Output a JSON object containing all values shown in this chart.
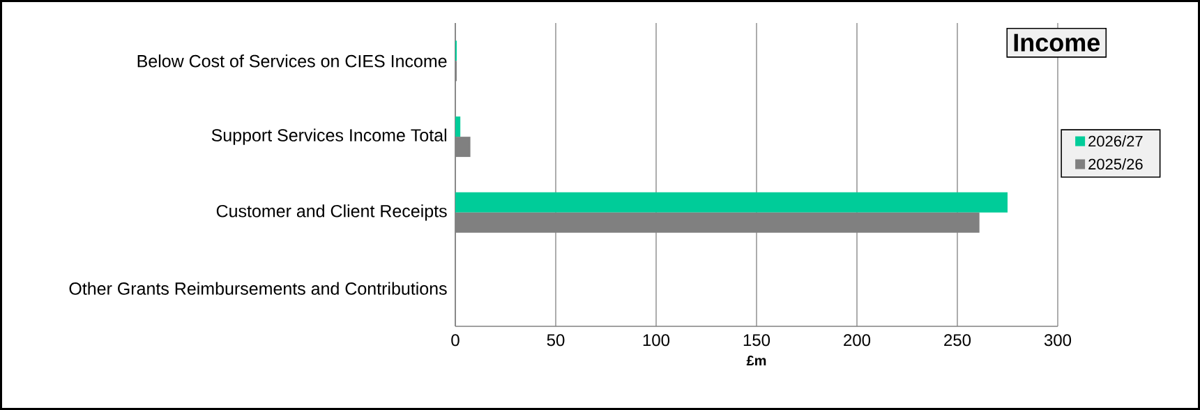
{
  "chart_data": {
    "type": "bar",
    "orientation": "horizontal",
    "title": "Income",
    "xlabel": "£m",
    "categories": [
      "Below Cost of Services on CIES Income",
      "Support Services Income Total",
      "Customer and Client Receipts",
      "Other Grants Reimbursements and Contributions"
    ],
    "series": [
      {
        "name": "2026/27",
        "color": "#00cc99",
        "values": [
          0.7,
          2.5,
          275,
          0
        ]
      },
      {
        "name": "2025/26",
        "color": "#808080",
        "values": [
          0.7,
          7.5,
          261,
          0
        ]
      }
    ],
    "xlim": [
      0,
      300
    ],
    "xticks": [
      0,
      50,
      100,
      150,
      200,
      250,
      300
    ],
    "grid": "x",
    "legend": "right"
  }
}
